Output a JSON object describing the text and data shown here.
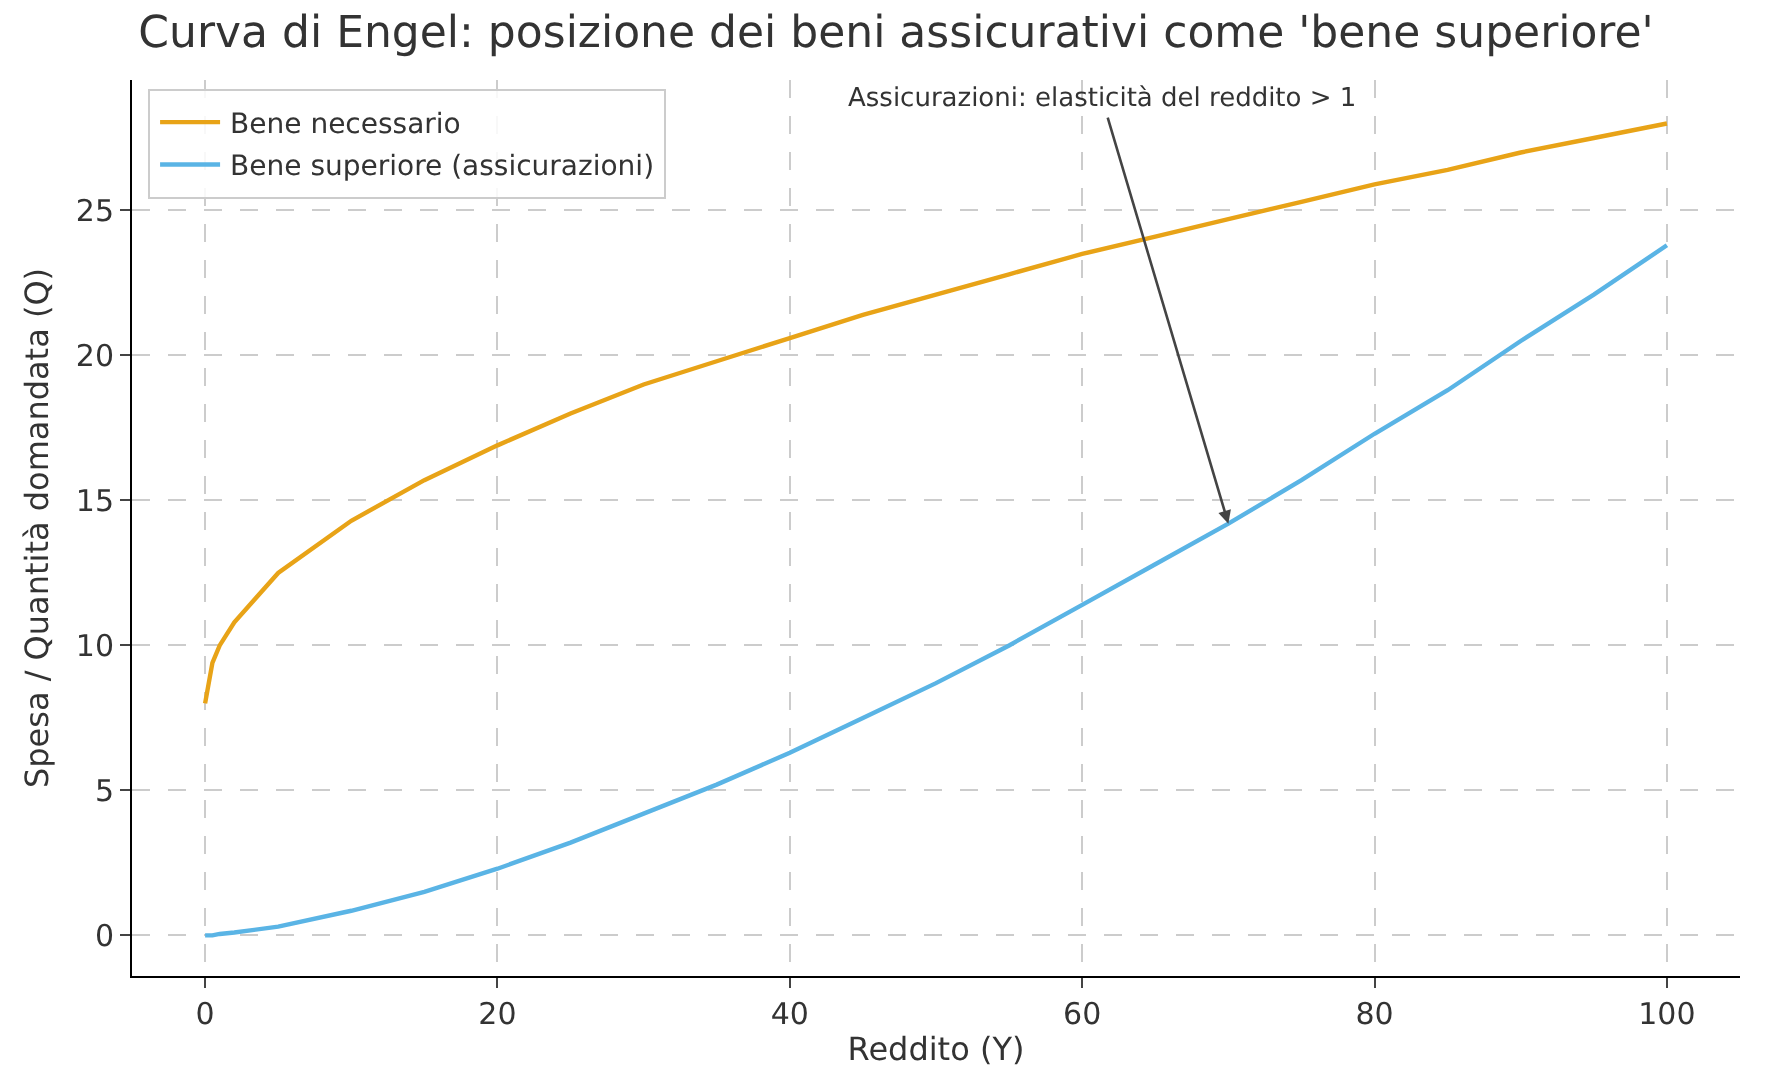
{
  "chart_data": {
    "type": "line",
    "title": "Curva di Engel: posizione dei beni assicurativi come 'bene superiore'",
    "xlabel": "Reddito (Y)",
    "ylabel": "Spesa / Quantità domandata (Q)",
    "x": [
      0,
      0.5,
      1,
      2,
      5,
      10,
      15,
      20,
      25,
      30,
      35,
      40,
      45,
      50,
      55,
      60,
      65,
      70,
      75,
      80,
      85,
      90,
      95,
      100
    ],
    "series": [
      {
        "name": "Bene necessario",
        "color": "#e8a317",
        "values": [
          8,
          9.4,
          10,
          10.8,
          12.5,
          14.3,
          15.7,
          16.9,
          18,
          19,
          19.8,
          20.6,
          21.4,
          22.1,
          22.8,
          23.5,
          24.1,
          24.7,
          25.3,
          25.9,
          26.4,
          27,
          27.5,
          28
        ]
      },
      {
        "name": "Bene superiore (assicurazioni)",
        "color": "#5ab4e5",
        "values": [
          0,
          0,
          0.05,
          0.1,
          0.3,
          0.85,
          1.5,
          2.3,
          3.2,
          4.2,
          5.2,
          6.3,
          7.5,
          8.7,
          10,
          11.4,
          12.8,
          14.2,
          15.7,
          17.3,
          18.8,
          20.5,
          22.1,
          23.8
        ]
      }
    ],
    "xlim": [
      -5,
      105
    ],
    "ylim": [
      -1.4,
      29.5
    ],
    "xticks": [
      0,
      20,
      40,
      60,
      80,
      100
    ],
    "yticks": [
      0,
      5,
      10,
      15,
      20,
      25
    ],
    "grid": true,
    "line_style": "solid",
    "marker": "none",
    "legend": "top left",
    "annotations": [
      {
        "text": "Assicurazioni: elasticità del reddito > 1",
        "x": 70,
        "y": 14.2
      }
    ]
  }
}
